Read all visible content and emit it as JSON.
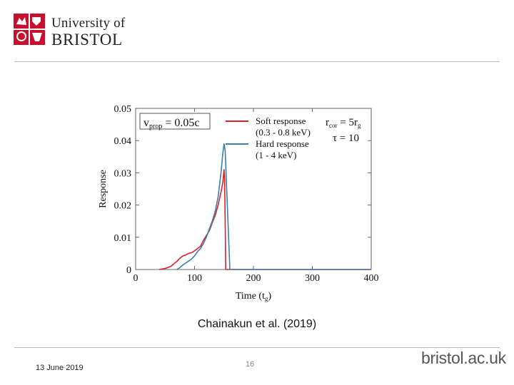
{
  "header": {
    "logo_line1": "University of",
    "logo_line2": "BRISTOL"
  },
  "caption": "Chainakun et al. (2019)",
  "footer": {
    "date": "13 June 2019",
    "page": "16",
    "site": "bristol.ac.uk"
  },
  "colors": {
    "soft": "#dd1f26",
    "hard": "#3a7fb0",
    "crest": "#c8102e",
    "rule": "#b9b9b9"
  },
  "chart_data": {
    "type": "line",
    "xlabel_main": "Time (t",
    "xlabel_sub": "g",
    "xlabel_end": ")",
    "ylabel": "Response",
    "xlim": [
      0,
      400
    ],
    "ylim": [
      0,
      0.05
    ],
    "xticks": [
      "0",
      "100",
      "200",
      "300",
      "400"
    ],
    "yticks": [
      "0",
      "0.01",
      "0.02",
      "0.03",
      "0.04",
      "0.05"
    ],
    "annotation": {
      "main": "v",
      "sub": "prop",
      "rest": " = 0.05c"
    },
    "params": [
      {
        "main": "r",
        "sub": "cor",
        "rest": " = 5r",
        "sub2": "g"
      },
      {
        "main": "τ",
        "sub": "",
        "rest": " = 10",
        "sub2": ""
      }
    ],
    "series": [
      {
        "name": "Soft response",
        "band": "(0.3 - 0.8 keV)",
        "x": [
          40,
          50,
          60,
          65,
          70,
          75,
          80,
          85,
          90,
          95,
          100,
          105,
          110,
          115,
          120,
          125,
          130,
          135,
          140,
          145,
          148,
          150,
          151,
          152,
          153,
          160,
          200,
          300,
          400
        ],
        "y": [
          0,
          0.0003,
          0.001,
          0.0018,
          0.0025,
          0.0035,
          0.0042,
          0.0045,
          0.005,
          0.0052,
          0.0058,
          0.0065,
          0.0072,
          0.009,
          0.0105,
          0.012,
          0.0145,
          0.0168,
          0.02,
          0.024,
          0.027,
          0.031,
          0.028,
          0.015,
          0,
          0,
          0,
          0,
          0
        ]
      },
      {
        "name": "Hard response",
        "band": "(1 - 4 keV)",
        "x": [
          70,
          75,
          80,
          85,
          90,
          95,
          100,
          105,
          110,
          115,
          120,
          125,
          130,
          135,
          140,
          145,
          148,
          150,
          152,
          160,
          200,
          300,
          400
        ],
        "y": [
          0,
          0.0006,
          0.0014,
          0.002,
          0.0026,
          0.0033,
          0.0042,
          0.0055,
          0.0065,
          0.008,
          0.01,
          0.0125,
          0.015,
          0.018,
          0.0225,
          0.03,
          0.036,
          0.039,
          0.037,
          0,
          0,
          0,
          0
        ]
      }
    ]
  }
}
